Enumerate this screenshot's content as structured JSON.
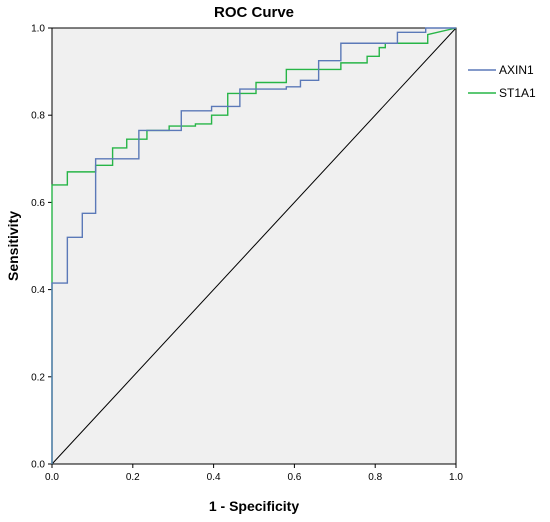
{
  "chart_data": {
    "type": "line",
    "title": "ROC Curve",
    "xlabel": "1 - Specificity",
    "ylabel": "Sensitivity",
    "xlim": [
      0,
      1
    ],
    "ylim": [
      0,
      1
    ],
    "x_ticks": [
      0.0,
      0.2,
      0.4,
      0.6,
      0.8,
      1.0
    ],
    "y_ticks": [
      0.0,
      0.2,
      0.4,
      0.6,
      0.8,
      1.0
    ],
    "x_tick_labels": [
      "0.0",
      "0.2",
      "0.4",
      "0.6",
      "0.8",
      "1.0"
    ],
    "y_tick_labels": [
      "0.0",
      "0.2",
      "0.4",
      "0.6",
      "0.8",
      "1.0"
    ],
    "grid": false,
    "legend_position": "right",
    "plot_background": "#f0f0f0",
    "series": [
      {
        "name": "AXIN1",
        "color": "#5b79b8",
        "step": true,
        "points": [
          [
            0.0,
            0.0
          ],
          [
            0.0,
            0.415
          ],
          [
            0.038,
            0.415
          ],
          [
            0.038,
            0.52
          ],
          [
            0.075,
            0.52
          ],
          [
            0.075,
            0.575
          ],
          [
            0.108,
            0.575
          ],
          [
            0.108,
            0.7
          ],
          [
            0.215,
            0.7
          ],
          [
            0.215,
            0.765
          ],
          [
            0.32,
            0.765
          ],
          [
            0.32,
            0.81
          ],
          [
            0.395,
            0.81
          ],
          [
            0.395,
            0.82
          ],
          [
            0.465,
            0.82
          ],
          [
            0.465,
            0.86
          ],
          [
            0.58,
            0.86
          ],
          [
            0.58,
            0.865
          ],
          [
            0.615,
            0.865
          ],
          [
            0.615,
            0.88
          ],
          [
            0.66,
            0.88
          ],
          [
            0.66,
            0.925
          ],
          [
            0.715,
            0.925
          ],
          [
            0.715,
            0.965
          ],
          [
            0.855,
            0.965
          ],
          [
            0.855,
            0.99
          ],
          [
            0.925,
            0.99
          ],
          [
            0.925,
            1.0
          ],
          [
            1.0,
            1.0
          ]
        ]
      },
      {
        "name": "ST1A1",
        "color": "#27b547",
        "step": true,
        "points": [
          [
            0.0,
            0.0
          ],
          [
            0.0,
            0.64
          ],
          [
            0.038,
            0.64
          ],
          [
            0.038,
            0.67
          ],
          [
            0.108,
            0.67
          ],
          [
            0.108,
            0.685
          ],
          [
            0.15,
            0.685
          ],
          [
            0.15,
            0.725
          ],
          [
            0.185,
            0.725
          ],
          [
            0.185,
            0.745
          ],
          [
            0.235,
            0.745
          ],
          [
            0.235,
            0.765
          ],
          [
            0.29,
            0.765
          ],
          [
            0.29,
            0.775
          ],
          [
            0.355,
            0.775
          ],
          [
            0.355,
            0.78
          ],
          [
            0.395,
            0.78
          ],
          [
            0.395,
            0.8
          ],
          [
            0.435,
            0.8
          ],
          [
            0.435,
            0.85
          ],
          [
            0.505,
            0.85
          ],
          [
            0.505,
            0.875
          ],
          [
            0.58,
            0.875
          ],
          [
            0.58,
            0.905
          ],
          [
            0.715,
            0.905
          ],
          [
            0.715,
            0.92
          ],
          [
            0.78,
            0.92
          ],
          [
            0.78,
            0.935
          ],
          [
            0.81,
            0.935
          ],
          [
            0.81,
            0.955
          ],
          [
            0.825,
            0.955
          ],
          [
            0.825,
            0.965
          ],
          [
            0.93,
            0.965
          ],
          [
            0.93,
            0.985
          ],
          [
            1.0,
            1.0
          ]
        ]
      }
    ]
  }
}
